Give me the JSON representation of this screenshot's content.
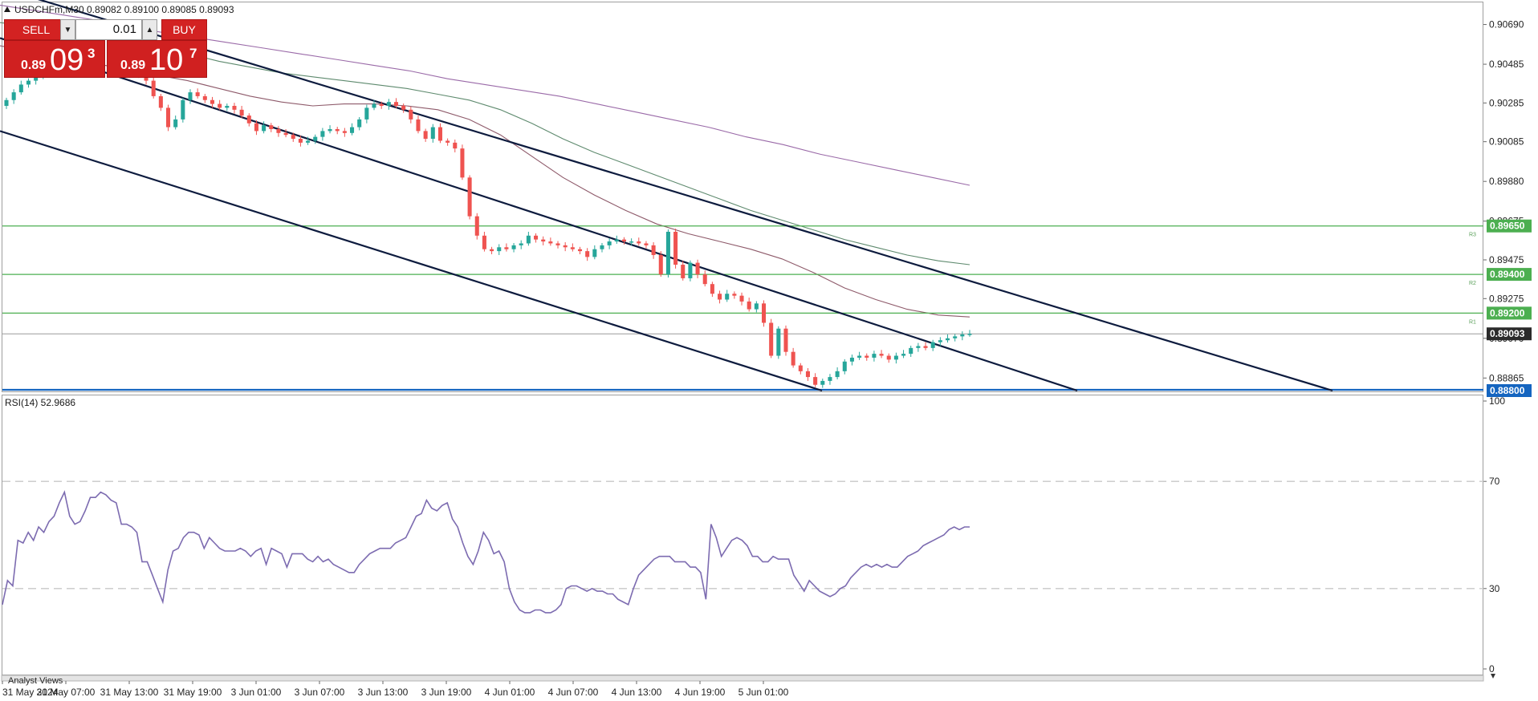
{
  "symbol_line": "USDCHFm,M30  0.89082 0.89100 0.89085 0.89093",
  "trade_panel": {
    "sell_label": "SELL",
    "buy_label": "BUY",
    "volume": "0.01",
    "sell_price_small": "0.89",
    "sell_price_big": "09",
    "sell_price_sup": "3",
    "buy_price_small": "0.89",
    "buy_price_big": "10",
    "buy_price_sup": "7"
  },
  "analyst_views_label": "Analyst Views",
  "colors": {
    "bull": "#26a69a",
    "bear": "#ef5350",
    "level": "#4caf50",
    "channel": "#0d1b3e",
    "ma_fast": "#8e5a6a",
    "ma_mid": "#5e8a6e",
    "ma_slow": "#9a6aa8",
    "rsi": "#7c6bb0",
    "current_tag": "#2b2b2b",
    "blue_line": "#1565c0"
  },
  "chart_data": [
    {
      "type": "candlestick",
      "title": "USDCHFm,M30",
      "ylim": [
        0.888,
        0.908
      ],
      "y_ticks": [
        "0.90690",
        "0.90485",
        "0.90285",
        "0.90085",
        "0.89880",
        "0.89675",
        "0.89475",
        "0.89275",
        "0.89070",
        "0.88865"
      ],
      "x_ticks": [
        "31 May 2024",
        "31 May 07:00",
        "31 May 13:00",
        "31 May 19:00",
        "3 Jun 01:00",
        "3 Jun 07:00",
        "3 Jun 13:00",
        "3 Jun 19:00",
        "4 Jun 01:00",
        "4 Jun 07:00",
        "4 Jun 13:00",
        "4 Jun 19:00",
        "5 Jun 01:00"
      ],
      "levels": [
        {
          "name": "R3",
          "value": 0.8965,
          "label": "0.89650"
        },
        {
          "name": "R2",
          "value": 0.894,
          "label": "0.89400"
        },
        {
          "name": "R1",
          "value": 0.892,
          "label": "0.89200"
        }
      ],
      "current_price": {
        "value": 0.89093,
        "label": "0.89093"
      },
      "blue_level": {
        "value": 0.888,
        "label": "0.88800"
      },
      "close_series": [
        0.903,
        0.9034,
        0.9038,
        0.904,
        0.9042,
        0.9044,
        0.9046,
        0.9045,
        0.9047,
        0.9049,
        0.9051,
        0.9053,
        0.9054,
        0.9056,
        0.9055,
        0.9052,
        0.9049,
        0.9046,
        0.9043,
        0.904,
        0.9032,
        0.9026,
        0.9016,
        0.902,
        0.903,
        0.9034,
        0.9032,
        0.903,
        0.9028,
        0.9026,
        0.9027,
        0.9025,
        0.9022,
        0.9018,
        0.9014,
        0.9017,
        0.9015,
        0.9013,
        0.9012,
        0.901,
        0.9008,
        0.9009,
        0.9011,
        0.9014,
        0.9015,
        0.9014,
        0.9013,
        0.9016,
        0.902,
        0.9026,
        0.9028,
        0.9027,
        0.9029,
        0.9027,
        0.9025,
        0.902,
        0.9014,
        0.901,
        0.9016,
        0.9009,
        0.9008,
        0.9005,
        0.899,
        0.897,
        0.896,
        0.8953,
        0.8952,
        0.8954,
        0.8953,
        0.8955,
        0.8956,
        0.896,
        0.8958,
        0.8957,
        0.8956,
        0.8955,
        0.8954,
        0.8953,
        0.8952,
        0.8949,
        0.8953,
        0.8955,
        0.8957,
        0.8958,
        0.8957,
        0.8957,
        0.8956,
        0.8955,
        0.895,
        0.894,
        0.8962,
        0.8945,
        0.8938,
        0.8946,
        0.894,
        0.8935,
        0.893,
        0.8927,
        0.893,
        0.8929,
        0.8926,
        0.8922,
        0.8925,
        0.8915,
        0.8898,
        0.8912,
        0.89,
        0.8893,
        0.889,
        0.8887,
        0.8883,
        0.8885,
        0.8887,
        0.889,
        0.8895,
        0.8897,
        0.8898,
        0.8897,
        0.8899,
        0.8898,
        0.8896,
        0.8898,
        0.8899,
        0.8902,
        0.8903,
        0.8902,
        0.8905,
        0.8906,
        0.8907,
        0.8908,
        0.8909,
        0.89093
      ],
      "ma_fast": [
        0.9058,
        0.9055,
        0.9052,
        0.9049,
        0.9046,
        0.9043,
        0.904,
        0.9036,
        0.9032,
        0.9029,
        0.9027,
        0.9028,
        0.9028,
        0.9027,
        0.9025,
        0.902,
        0.9012,
        0.9001,
        0.899,
        0.8981,
        0.8973,
        0.8966,
        0.8961,
        0.8957,
        0.8953,
        0.8948,
        0.8941,
        0.8933,
        0.8927,
        0.8922,
        0.8919,
        0.8918
      ],
      "ma_mid": [
        0.907,
        0.9068,
        0.9066,
        0.9063,
        0.906,
        0.9057,
        0.9054,
        0.905,
        0.9047,
        0.9044,
        0.9042,
        0.904,
        0.9038,
        0.9036,
        0.9033,
        0.903,
        0.9025,
        0.9018,
        0.901,
        0.9003,
        0.8997,
        0.8991,
        0.8985,
        0.8979,
        0.8973,
        0.8968,
        0.8963,
        0.8958,
        0.8954,
        0.895,
        0.8947,
        0.8945
      ],
      "ma_slow": [
        0.9079,
        0.9076,
        0.9073,
        0.907,
        0.9066,
        0.9063,
        0.906,
        0.9057,
        0.9054,
        0.9051,
        0.9048,
        0.9045,
        0.9041,
        0.9038,
        0.9035,
        0.9032,
        0.9028,
        0.9024,
        0.902,
        0.9016,
        0.9011,
        0.9007,
        0.9002,
        0.8998,
        0.8994,
        0.899,
        0.8986
      ],
      "channel_upper": {
        "start": [
          0,
          0.9088
        ],
        "end": [
          1,
          0.888
        ]
      },
      "channel_middle": {
        "start": [
          0,
          0.9062
        ],
        "end": [
          1,
          0.888
        ]
      },
      "channel_lower": {
        "start": [
          0,
          0.9014
        ],
        "end": [
          1,
          0.888
        ]
      }
    },
    {
      "type": "line",
      "title": "RSI(14) 52.9686",
      "ylim": [
        0,
        100
      ],
      "y_ticks": [
        "100",
        "70",
        "30",
        "0"
      ],
      "levels": [
        70,
        30
      ],
      "values": [
        24,
        33,
        31,
        48,
        47,
        51,
        48,
        53,
        51,
        55,
        57,
        62,
        66,
        57,
        54,
        55,
        59,
        64,
        64,
        66,
        65,
        63,
        62,
        54,
        54,
        53,
        51,
        40,
        40,
        35,
        30,
        25,
        37,
        44,
        45,
        49,
        51,
        51,
        50,
        45,
        49,
        47,
        45,
        44,
        44,
        44,
        45,
        44,
        42,
        44,
        45,
        39,
        45,
        44,
        43,
        38,
        43,
        43,
        43,
        41,
        40,
        42,
        40,
        41,
        39,
        38,
        37,
        36,
        36,
        39,
        41,
        43,
        44,
        45,
        45,
        45,
        47,
        48,
        49,
        53,
        57,
        58,
        63,
        60,
        59,
        61,
        62,
        56,
        53,
        47,
        42,
        39,
        44,
        51,
        48,
        43,
        44,
        40,
        30,
        25,
        22,
        21,
        21,
        22,
        22,
        21,
        21,
        22,
        24,
        30,
        31,
        31,
        30,
        29,
        30,
        29,
        29,
        28,
        28,
        26,
        25,
        24,
        30,
        35,
        37,
        39,
        41,
        42,
        42,
        42,
        40,
        40,
        40,
        38,
        38,
        36,
        26,
        54,
        49,
        42,
        45,
        48,
        49,
        48,
        46,
        42,
        42,
        40,
        40,
        42,
        41,
        41,
        41,
        35,
        32,
        29,
        33,
        31,
        29,
        28,
        27,
        28,
        30,
        31,
        34,
        36,
        38,
        39,
        38,
        39,
        38,
        39,
        38,
        38,
        40,
        42,
        43,
        44,
        46,
        47,
        48,
        49,
        50,
        52,
        53,
        52,
        53,
        53
      ],
      "current": 52.9686
    }
  ]
}
